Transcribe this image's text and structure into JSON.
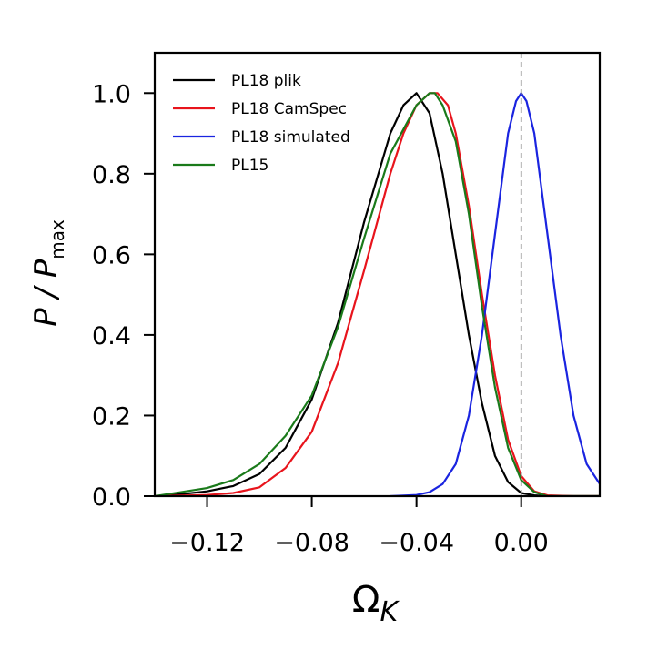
{
  "chart_data": {
    "type": "line",
    "xlabel": "Ω",
    "xlabel_sub": "K",
    "ylabel_main": "P / P",
    "ylabel_sub": "max",
    "xlim": [
      -0.14,
      0.03
    ],
    "ylim": [
      0,
      1.1
    ],
    "xticks": [
      -0.12,
      -0.08,
      -0.04,
      0.0
    ],
    "xtick_labels": [
      "−0.12",
      "−0.08",
      "−0.04",
      "0.00"
    ],
    "yticks": [
      0.0,
      0.2,
      0.4,
      0.6,
      0.8,
      1.0
    ],
    "ytick_labels": [
      "0.0",
      "0.2",
      "0.4",
      "0.6",
      "0.8",
      "1.0"
    ],
    "grid": false,
    "legend_position": "top-left",
    "reference_line": {
      "x": 0.0,
      "style": "dashed",
      "color": "#808080"
    },
    "series": [
      {
        "name": "PL18 plik",
        "color": "#000000",
        "x": [
          -0.14,
          -0.13,
          -0.12,
          -0.11,
          -0.1,
          -0.09,
          -0.08,
          -0.07,
          -0.06,
          -0.05,
          -0.045,
          -0.04,
          -0.035,
          -0.03,
          -0.025,
          -0.02,
          -0.015,
          -0.01,
          -0.005,
          0.0,
          0.005,
          0.01,
          0.02,
          0.03
        ],
        "y": [
          0.0,
          0.005,
          0.012,
          0.025,
          0.055,
          0.12,
          0.24,
          0.43,
          0.68,
          0.9,
          0.97,
          1.0,
          0.95,
          0.8,
          0.6,
          0.4,
          0.23,
          0.1,
          0.035,
          0.008,
          0.002,
          0.0,
          0.0,
          0.0
        ]
      },
      {
        "name": "PL18 CamSpec",
        "color": "#e8141c",
        "x": [
          -0.14,
          -0.12,
          -0.11,
          -0.1,
          -0.09,
          -0.08,
          -0.07,
          -0.06,
          -0.05,
          -0.045,
          -0.04,
          -0.035,
          -0.032,
          -0.028,
          -0.025,
          -0.02,
          -0.015,
          -0.01,
          -0.005,
          0.0,
          0.005,
          0.01,
          0.02,
          0.03
        ],
        "y": [
          0.0,
          0.003,
          0.008,
          0.022,
          0.07,
          0.16,
          0.33,
          0.56,
          0.8,
          0.9,
          0.97,
          1.0,
          1.0,
          0.97,
          0.9,
          0.72,
          0.5,
          0.3,
          0.14,
          0.05,
          0.012,
          0.002,
          0.0,
          0.0
        ]
      },
      {
        "name": "PL18 simulated",
        "color": "#1a24e0",
        "x": [
          -0.05,
          -0.04,
          -0.035,
          -0.03,
          -0.025,
          -0.02,
          -0.015,
          -0.01,
          -0.005,
          -0.002,
          0.0,
          0.002,
          0.005,
          0.01,
          0.015,
          0.02,
          0.025,
          0.03
        ],
        "y": [
          0.0,
          0.003,
          0.01,
          0.03,
          0.08,
          0.2,
          0.4,
          0.65,
          0.9,
          0.98,
          1.0,
          0.98,
          0.9,
          0.65,
          0.4,
          0.2,
          0.08,
          0.03
        ]
      },
      {
        "name": "PL15",
        "color": "#1a7a1a",
        "x": [
          -0.14,
          -0.13,
          -0.12,
          -0.11,
          -0.1,
          -0.09,
          -0.08,
          -0.07,
          -0.06,
          -0.05,
          -0.04,
          -0.035,
          -0.033,
          -0.03,
          -0.025,
          -0.02,
          -0.015,
          -0.01,
          -0.005,
          0.0,
          0.005,
          0.01,
          0.02,
          0.03
        ],
        "y": [
          0.0,
          0.01,
          0.02,
          0.04,
          0.08,
          0.15,
          0.25,
          0.42,
          0.64,
          0.85,
          0.97,
          1.0,
          1.0,
          0.97,
          0.88,
          0.7,
          0.47,
          0.27,
          0.12,
          0.04,
          0.01,
          0.0,
          0.0,
          0.0
        ]
      }
    ]
  }
}
